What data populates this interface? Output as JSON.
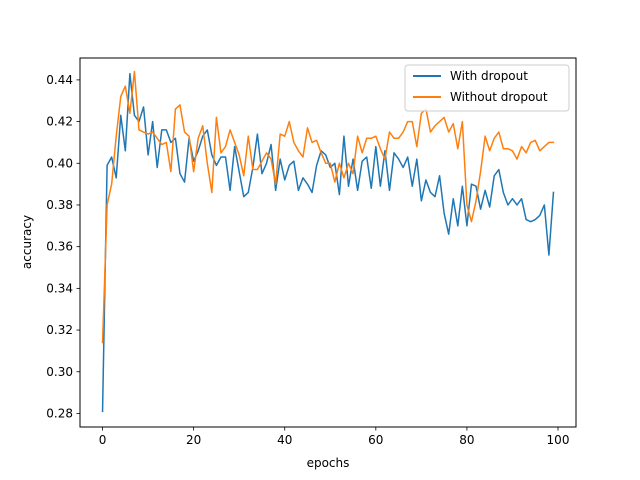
{
  "chart_data": {
    "type": "line",
    "xlabel": "epochs",
    "ylabel": "accuracy",
    "xlim": [
      -4.95,
      103.95
    ],
    "ylim": [
      0.2735,
      0.4505
    ],
    "xticks": [
      0,
      20,
      40,
      60,
      80,
      100
    ],
    "yticks": [
      0.28,
      0.3,
      0.32,
      0.34,
      0.36,
      0.38,
      0.4,
      0.42,
      0.44
    ],
    "ytick_labels": [
      "0.28",
      "0.30",
      "0.32",
      "0.34",
      "0.36",
      "0.38",
      "0.40",
      "0.42",
      "0.44"
    ],
    "grid": false,
    "legend_position": "top-right",
    "series": [
      {
        "name": "With dropout",
        "color": "#1f77b4",
        "values": [
          0.281,
          0.399,
          0.403,
          0.393,
          0.423,
          0.406,
          0.443,
          0.423,
          0.42,
          0.427,
          0.404,
          0.42,
          0.398,
          0.416,
          0.416,
          0.41,
          0.412,
          0.395,
          0.391,
          0.412,
          0.401,
          0.406,
          0.413,
          0.416,
          0.404,
          0.399,
          0.403,
          0.403,
          0.387,
          0.408,
          0.396,
          0.384,
          0.386,
          0.398,
          0.414,
          0.395,
          0.4,
          0.409,
          0.387,
          0.402,
          0.392,
          0.399,
          0.401,
          0.387,
          0.393,
          0.39,
          0.386,
          0.399,
          0.406,
          0.404,
          0.398,
          0.4,
          0.385,
          0.413,
          0.389,
          0.402,
          0.387,
          0.401,
          0.403,
          0.388,
          0.408,
          0.389,
          0.406,
          0.387,
          0.405,
          0.402,
          0.398,
          0.403,
          0.389,
          0.402,
          0.382,
          0.392,
          0.386,
          0.384,
          0.394,
          0.376,
          0.366,
          0.383,
          0.37,
          0.389,
          0.37,
          0.39,
          0.389,
          0.378,
          0.387,
          0.379,
          0.394,
          0.397,
          0.386,
          0.38,
          0.383,
          0.38,
          0.383,
          0.373,
          0.372,
          0.373,
          0.375,
          0.38,
          0.356,
          0.386
        ]
      },
      {
        "name": "Without dropout",
        "color": "#ff7f0e",
        "values": [
          0.314,
          0.38,
          0.39,
          0.413,
          0.432,
          0.437,
          0.424,
          0.444,
          0.416,
          0.415,
          0.414,
          0.415,
          0.412,
          0.409,
          0.41,
          0.396,
          0.426,
          0.428,
          0.415,
          0.413,
          0.396,
          0.412,
          0.418,
          0.4,
          0.386,
          0.422,
          0.405,
          0.408,
          0.416,
          0.41,
          0.404,
          0.394,
          0.413,
          0.397,
          0.397,
          0.401,
          0.405,
          0.402,
          0.39,
          0.414,
          0.413,
          0.42,
          0.41,
          0.406,
          0.403,
          0.417,
          0.41,
          0.411,
          0.405,
          0.4,
          0.4,
          0.391,
          0.4,
          0.393,
          0.4,
          0.395,
          0.413,
          0.405,
          0.412,
          0.412,
          0.413,
          0.407,
          0.402,
          0.415,
          0.412,
          0.412,
          0.415,
          0.42,
          0.42,
          0.408,
          0.424,
          0.426,
          0.415,
          0.418,
          0.42,
          0.422,
          0.415,
          0.419,
          0.407,
          0.42,
          0.38,
          0.372,
          0.382,
          0.396,
          0.413,
          0.406,
          0.412,
          0.415,
          0.407,
          0.407,
          0.406,
          0.402,
          0.408,
          0.405,
          0.41,
          0.411,
          0.406,
          0.408,
          0.41,
          0.41
        ]
      }
    ]
  }
}
